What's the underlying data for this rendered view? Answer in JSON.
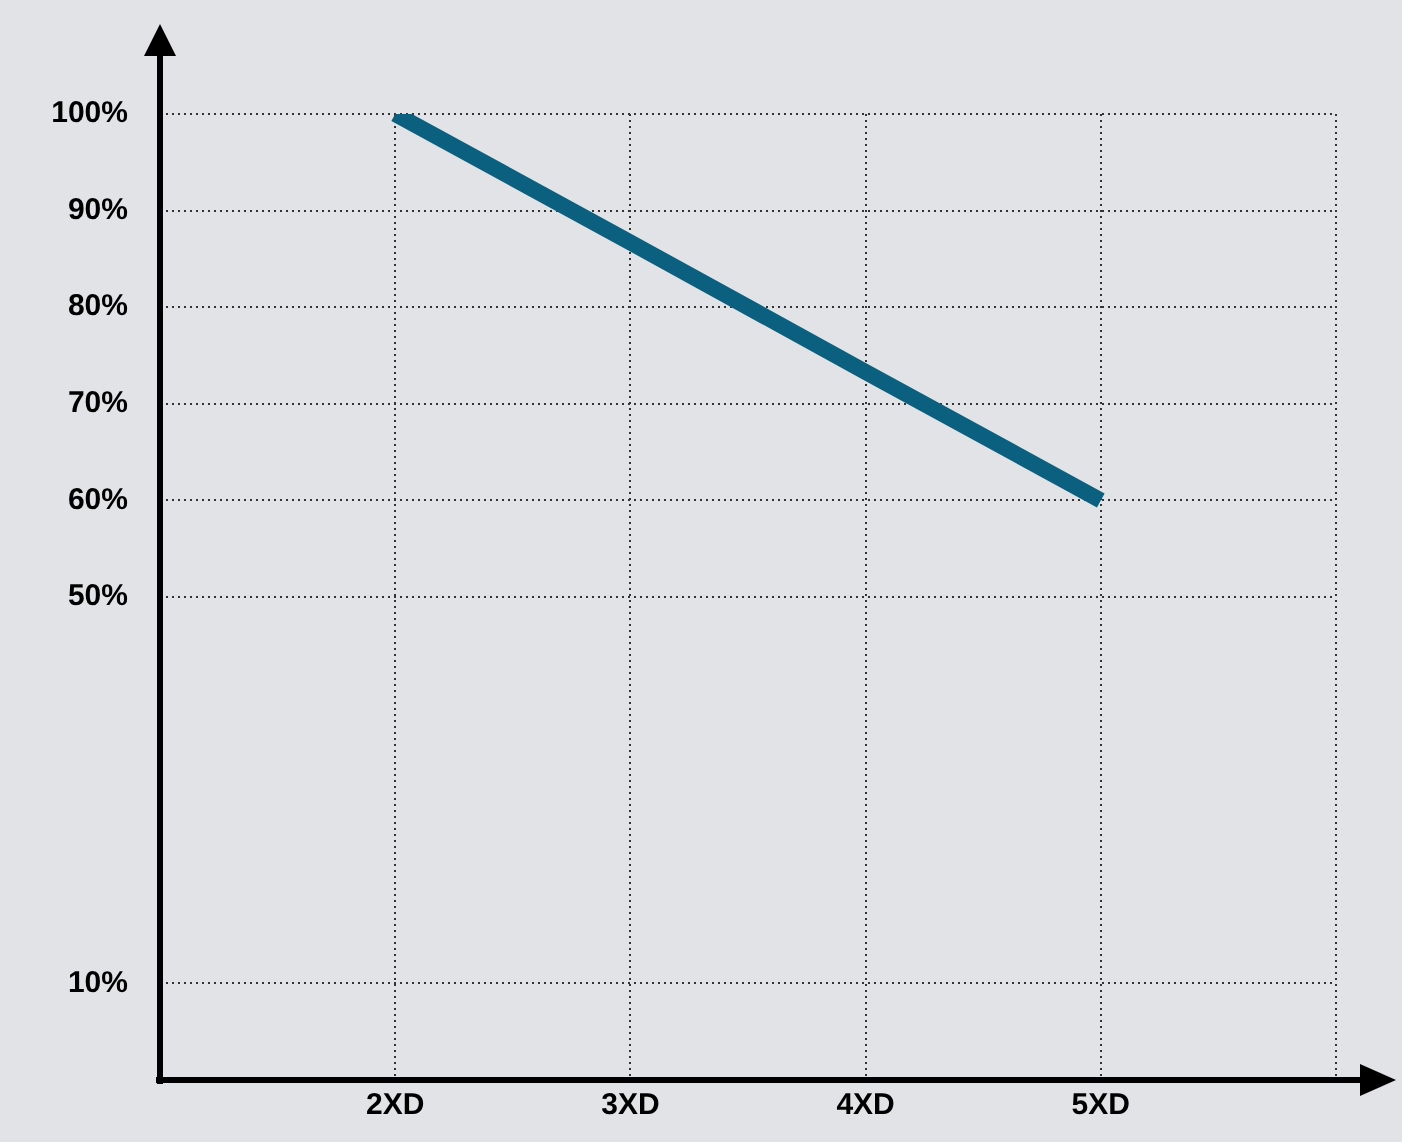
{
  "chart_data": {
    "type": "line",
    "categories": [
      null,
      "2XD",
      "3XD",
      "4XD",
      "5XD",
      null
    ],
    "series": [
      {
        "color": "#0b5f7f",
        "values": [
          null,
          100,
          86.7,
          73.3,
          60,
          null
        ]
      }
    ],
    "ylim": [
      0,
      100
    ],
    "yticks": [
      {
        "value": 10,
        "label": "10%"
      },
      {
        "value": 50,
        "label": "50%"
      },
      {
        "value": 60,
        "label": "60%"
      },
      {
        "value": 70,
        "label": "70%"
      },
      {
        "value": 80,
        "label": "80%"
      },
      {
        "value": 90,
        "label": "90%"
      },
      {
        "value": 100,
        "label": "100%"
      }
    ],
    "grid": true,
    "legend": false,
    "marker": "none",
    "line_style": "solid"
  }
}
